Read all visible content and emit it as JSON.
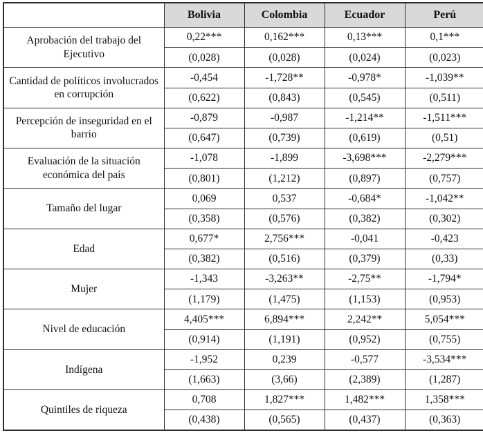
{
  "chart_data": {
    "type": "table",
    "headers": [
      "",
      "Bolivia",
      "Colombia",
      "Ecuador",
      "Perú"
    ],
    "rows": [
      {
        "label": "Aprobación del trabajo del Ejecutivo",
        "coefficients": [
          "0,22***",
          "0,162***",
          "0,13***",
          "0,1***"
        ],
        "std_errors": [
          "(0,028)",
          "(0,028)",
          "(0,024)",
          "(0,023)"
        ]
      },
      {
        "label": "Cantidad de políticos involucrados en corrupción",
        "coefficients": [
          "-0,454",
          "-1,728**",
          "-0,978*",
          "-1,039**"
        ],
        "std_errors": [
          "(0,622)",
          "(0,843)",
          "(0,545)",
          "(0,511)"
        ]
      },
      {
        "label": "Percepción de inseguridad en el barrio",
        "coefficients": [
          "-0,879",
          "-0,987",
          "-1,214**",
          "-1,511***"
        ],
        "std_errors": [
          "(0,647)",
          "(0,739)",
          "(0,619)",
          "(0,51)"
        ]
      },
      {
        "label": "Evaluación de la situación económica del país",
        "coefficients": [
          "-1,078",
          "-1,899",
          "-3,698***",
          "-2,279***"
        ],
        "std_errors": [
          "(0,801)",
          "(1,212)",
          "(0,897)",
          "(0,757)"
        ]
      },
      {
        "label": "Tamaño del lugar",
        "coefficients": [
          "0,069",
          "0,537",
          "-0,684*",
          "-1,042**"
        ],
        "std_errors": [
          "(0,358)",
          "(0,576)",
          "(0,382)",
          "(0,302)"
        ]
      },
      {
        "label": "Edad",
        "coefficients": [
          "0,677*",
          "2,756***",
          "-0,041",
          "-0,423"
        ],
        "std_errors": [
          "(0,382)",
          "(0,516)",
          "(0,379)",
          "(0,33)"
        ]
      },
      {
        "label": "Mujer",
        "coefficients": [
          "-1,343",
          "-3,263**",
          "-2,75**",
          "-1,794*"
        ],
        "std_errors": [
          "(1,179)",
          "(1,475)",
          "(1,153)",
          "(0,953)"
        ]
      },
      {
        "label": "Nivel de educación",
        "coefficients": [
          "4,405***",
          "6,894***",
          "2,242**",
          "5,054***"
        ],
        "std_errors": [
          "(0,914)",
          "(1,191)",
          "(0,952)",
          "(0,755)"
        ]
      },
      {
        "label": "Indígena",
        "coefficients": [
          "-1,952",
          "0,239",
          "-0,577",
          "-3,534***"
        ],
        "std_errors": [
          "(1,663)",
          "(3,66)",
          "(2,389)",
          "(1,287)"
        ]
      },
      {
        "label": "Quintiles de riqueza",
        "coefficients": [
          "0,708",
          "1,827***",
          "1,482***",
          "1,358***"
        ],
        "std_errors": [
          "(0,438)",
          "(0,565)",
          "(0,437)",
          "(0,363)"
        ]
      }
    ]
  },
  "style": {
    "header_bg": "#d9d9d9",
    "border_color": "#2e2e2e",
    "text_color": "#111111"
  }
}
